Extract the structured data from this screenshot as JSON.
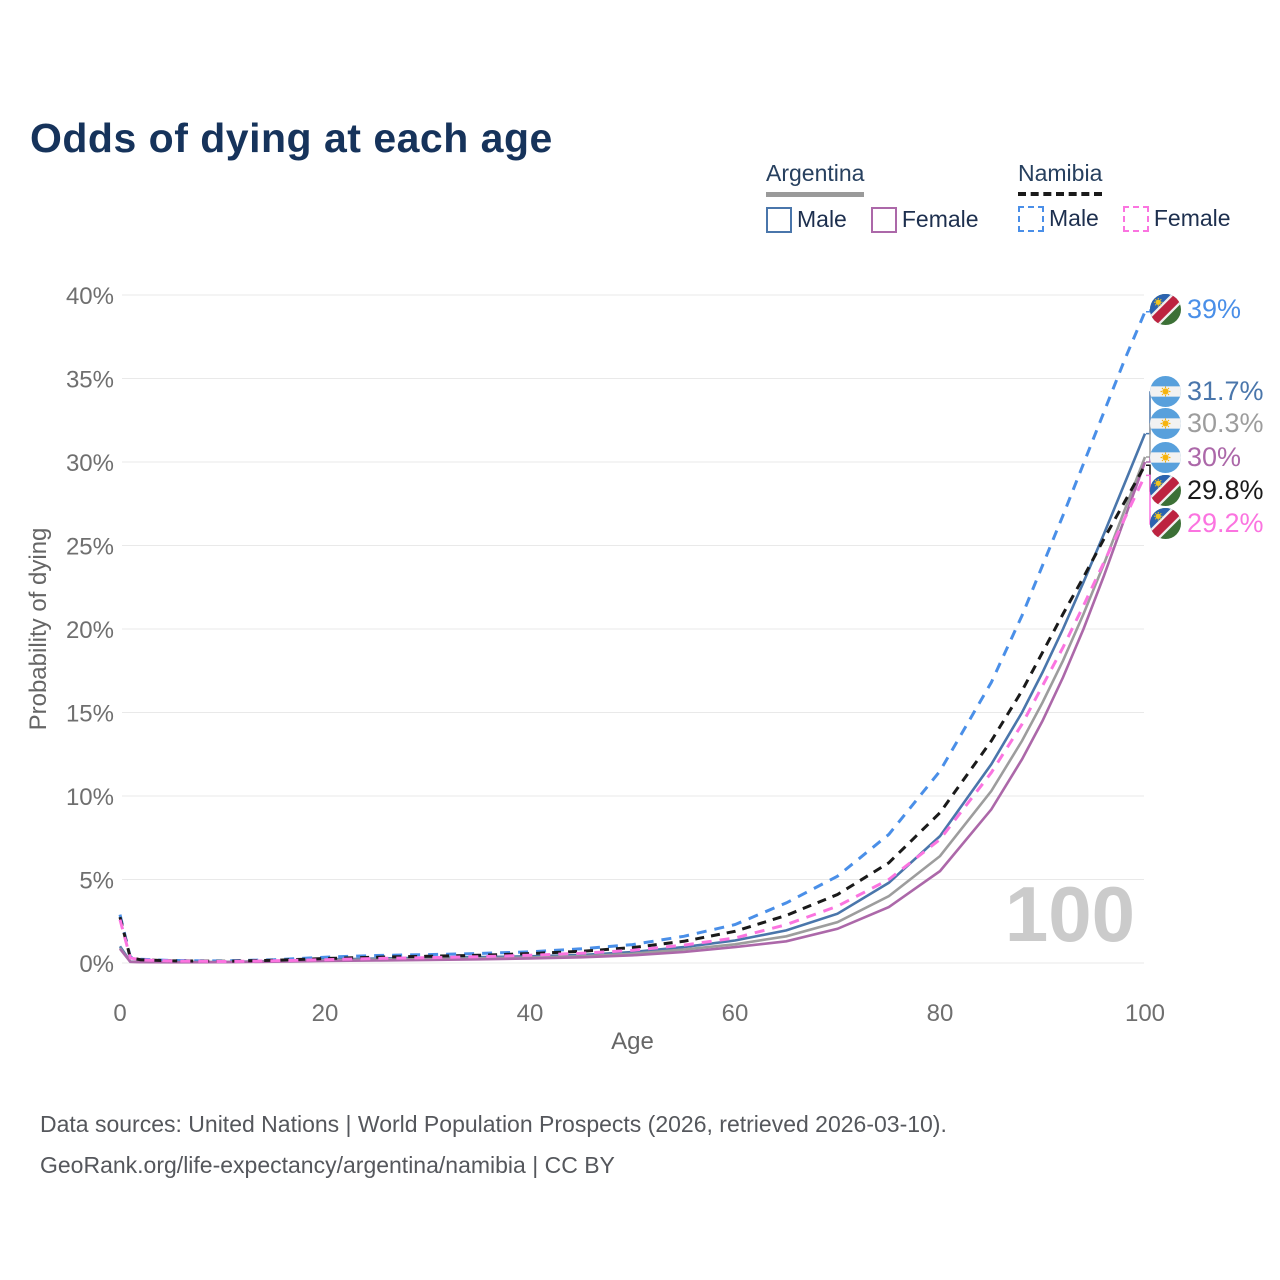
{
  "title": "Odds of dying at each age",
  "legend": {
    "groups": [
      {
        "country": "Argentina",
        "items": [
          {
            "label": "Male"
          },
          {
            "label": "Female"
          }
        ]
      },
      {
        "country": "Namibia",
        "items": [
          {
            "label": "Male"
          },
          {
            "label": "Female"
          }
        ]
      }
    ]
  },
  "chart_data": {
    "type": "line",
    "title": "Odds of dying at each age",
    "xlabel": "Age",
    "ylabel": "Probability of dying",
    "xlim": [
      0,
      100
    ],
    "ylim": [
      0,
      40
    ],
    "xticks": [
      0,
      20,
      40,
      60,
      80,
      100
    ],
    "yticks": [
      0,
      5,
      10,
      15,
      20,
      25,
      30,
      35,
      40
    ],
    "ytick_suffix": "%",
    "grid": "horizontal",
    "legend_position": "top-right",
    "watermark": "100",
    "x": [
      0,
      1,
      2,
      5,
      10,
      15,
      20,
      25,
      30,
      35,
      40,
      45,
      50,
      55,
      60,
      65,
      70,
      75,
      80,
      85,
      88,
      90,
      92,
      94,
      96,
      98,
      100
    ],
    "series": [
      {
        "country": "Namibia",
        "label": "Male",
        "color": "#4a8fe8",
        "style": "dashed",
        "dash": "10 8",
        "width": 3,
        "flag": "namibia",
        "end_label": "39%",
        "values": [
          2.9,
          0.35,
          0.22,
          0.15,
          0.12,
          0.2,
          0.35,
          0.45,
          0.5,
          0.57,
          0.67,
          0.85,
          1.1,
          1.6,
          2.3,
          3.6,
          5.2,
          7.7,
          11.5,
          16.8,
          20.8,
          23.8,
          26.8,
          29.9,
          33.0,
          36.1,
          39.0
        ]
      },
      {
        "country": "Argentina",
        "label": "Male",
        "color": "#4a76ab",
        "style": "solid",
        "dash": "",
        "width": 2.6,
        "flag": "argentina",
        "end_label": "31.7%",
        "values": [
          1.0,
          0.09,
          0.06,
          0.05,
          0.06,
          0.12,
          0.2,
          0.27,
          0.31,
          0.35,
          0.4,
          0.48,
          0.66,
          0.95,
          1.35,
          1.95,
          2.95,
          4.8,
          7.6,
          11.9,
          15.0,
          17.4,
          20.0,
          22.8,
          25.7,
          28.7,
          31.7
        ]
      },
      {
        "country": "Argentina",
        "label": "Argentina",
        "color": "#9d9d9d",
        "style": "solid",
        "dash": "",
        "width": 2.6,
        "flag": "argentina",
        "end_label": "30.3%",
        "values": [
          0.9,
          0.08,
          0.055,
          0.045,
          0.05,
          0.1,
          0.16,
          0.21,
          0.24,
          0.28,
          0.33,
          0.4,
          0.55,
          0.8,
          1.12,
          1.6,
          2.45,
          4.0,
          6.4,
          10.3,
          13.3,
          15.6,
          18.1,
          20.9,
          23.9,
          27.1,
          30.3
        ]
      },
      {
        "country": "Argentina",
        "label": "Female",
        "color": "#ac68a9",
        "style": "solid",
        "dash": "",
        "width": 2.6,
        "flag": "argentina",
        "end_label": "30%",
        "values": [
          0.85,
          0.07,
          0.05,
          0.04,
          0.045,
          0.08,
          0.12,
          0.15,
          0.18,
          0.22,
          0.27,
          0.34,
          0.46,
          0.66,
          0.95,
          1.3,
          2.05,
          3.35,
          5.5,
          9.2,
          12.2,
          14.5,
          17.1,
          20.0,
          23.2,
          26.6,
          30.0
        ]
      },
      {
        "country": "Namibia",
        "label": "Namibia",
        "color": "#1a1a1a",
        "style": "dashed",
        "dash": "9 7",
        "width": 3,
        "flag": "namibia",
        "end_label": "29.8%",
        "values": [
          2.75,
          0.32,
          0.2,
          0.13,
          0.1,
          0.16,
          0.27,
          0.35,
          0.4,
          0.46,
          0.56,
          0.7,
          0.92,
          1.3,
          1.9,
          2.85,
          4.1,
          6.0,
          9.0,
          13.3,
          16.3,
          18.6,
          20.9,
          23.1,
          25.4,
          27.6,
          29.8
        ]
      },
      {
        "country": "Namibia",
        "label": "Female",
        "color": "#fb74e0",
        "style": "dashed",
        "dash": "10 8",
        "width": 3,
        "flag": "namibia",
        "end_label": "29.2%",
        "values": [
          2.6,
          0.3,
          0.19,
          0.12,
          0.09,
          0.13,
          0.2,
          0.27,
          0.32,
          0.38,
          0.47,
          0.58,
          0.76,
          1.07,
          1.5,
          2.3,
          3.4,
          5.0,
          7.4,
          11.4,
          14.3,
          16.6,
          18.9,
          21.4,
          24.0,
          26.6,
          29.2
        ]
      }
    ]
  },
  "footer": {
    "line1": "Data sources: United Nations | World Population Prospects (2026, retrieved 2026-03-10).",
    "line2": "GeoRank.org/life-expectancy/argentina/namibia | CC BY"
  }
}
